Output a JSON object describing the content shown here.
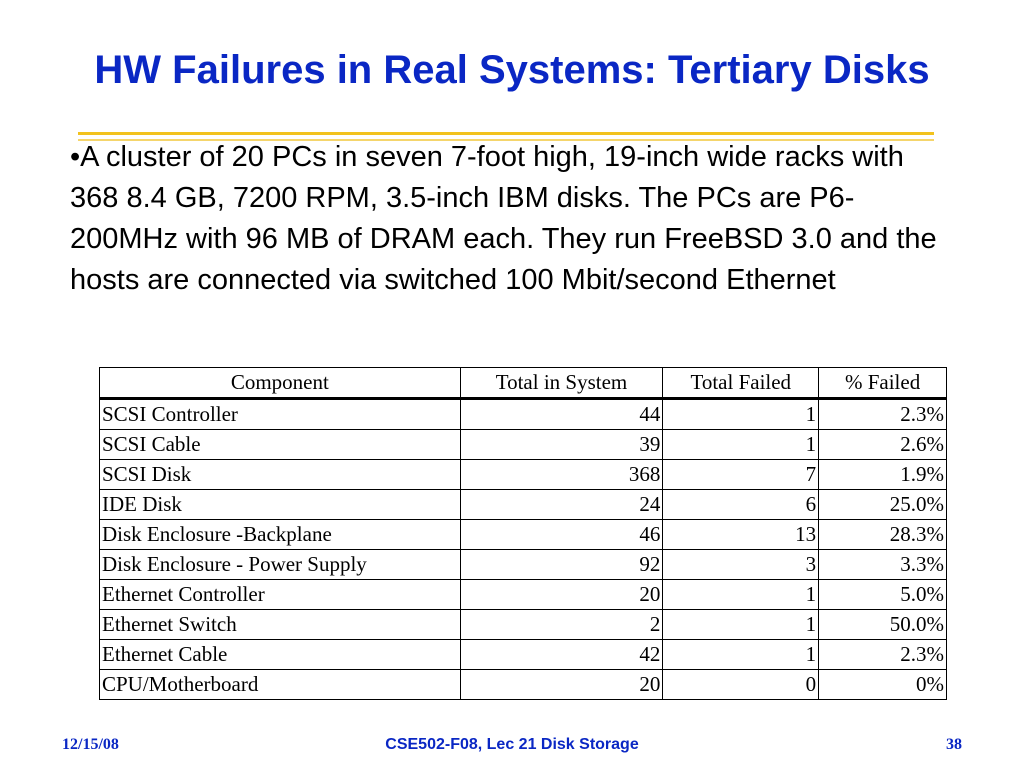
{
  "slide": {
    "title": "HW Failures in Real Systems: Tertiary Disks",
    "bullet": "•A cluster of 20 PCs in seven 7-foot high, 19-inch wide racks with 368 8.4 GB, 7200 RPM, 3.5-inch IBM disks. The PCs are P6-200MHz with 96 MB of DRAM each. They run FreeBSD 3.0 and the hosts are connected via switched 100 Mbit/second Ethernet"
  },
  "table": {
    "headers": [
      "Component",
      "Total in System",
      "Total Failed",
      "% Failed"
    ],
    "rows": [
      [
        "SCSI Controller",
        "44",
        "1",
        "2.3%"
      ],
      [
        "SCSI Cable",
        "39",
        "1",
        "2.6%"
      ],
      [
        "SCSI Disk",
        "368",
        "7",
        "1.9%"
      ],
      [
        "IDE Disk",
        "24",
        "6",
        "25.0%"
      ],
      [
        "Disk Enclosure -Backplane",
        "46",
        "13",
        "28.3%"
      ],
      [
        "Disk Enclosure - Power Supply",
        "92",
        "3",
        "3.3%"
      ],
      [
        "Ethernet Controller",
        "20",
        "1",
        "5.0%"
      ],
      [
        "Ethernet Switch",
        "2",
        "1",
        "50.0%"
      ],
      [
        "Ethernet Cable",
        "42",
        "1",
        "2.3%"
      ],
      [
        "CPU/Motherboard",
        "20",
        "0",
        "0%"
      ]
    ]
  },
  "footer": {
    "date": "12/15/08",
    "course": "CSE502-F08, Lec 21 Disk Storage",
    "page": "38"
  },
  "colors": {
    "title": "#0a27c4",
    "rule": "#f2c21d",
    "footer": "#0a27c4"
  }
}
